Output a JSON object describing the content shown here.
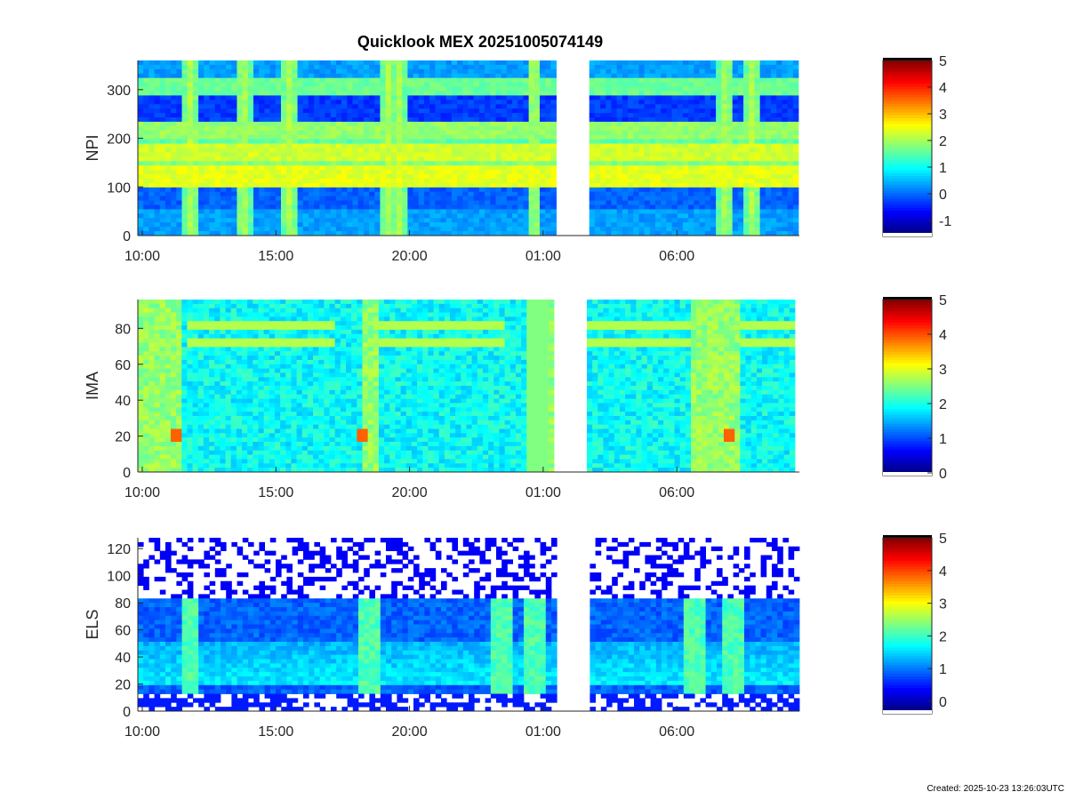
{
  "title": "Quicklook MEX 20251005074149",
  "footer": "Created: 2025-10-23 13:26:03UTC",
  "chart_data": [
    {
      "type": "heatmap",
      "ylabel": "NPI",
      "ylim": [
        0,
        360
      ],
      "yticks": [
        0,
        100,
        200,
        300
      ],
      "x_ticklabels": [
        "10:00",
        "15:00",
        "20:00",
        "01:00",
        "06:00"
      ],
      "colorbar": {
        "ticks": [
          -1,
          0,
          1,
          2,
          3,
          4,
          5
        ],
        "range": [
          -1.5,
          5
        ]
      },
      "data_gap": {
        "from": 0.63,
        "to": 0.68
      }
    },
    {
      "type": "heatmap",
      "ylabel": "IMA",
      "ylim": [
        0,
        96
      ],
      "yticks": [
        0,
        20,
        40,
        60,
        80
      ],
      "x_ticklabels": [
        "10:00",
        "15:00",
        "20:00",
        "01:00",
        "06:00"
      ],
      "colorbar": {
        "ticks": [
          0,
          1,
          2,
          3,
          4,
          5
        ],
        "range": [
          0,
          5
        ]
      },
      "data_gap": {
        "from": 0.635,
        "to": 0.68
      }
    },
    {
      "type": "heatmap",
      "ylabel": "ELS",
      "ylim": [
        0,
        128
      ],
      "yticks": [
        0,
        20,
        40,
        60,
        80,
        100,
        120
      ],
      "x_ticklabels": [
        "10:00",
        "15:00",
        "20:00",
        "01:00",
        "06:00"
      ],
      "colorbar": {
        "ticks": [
          0,
          1,
          2,
          3,
          4,
          5
        ],
        "range": [
          -0.3,
          5
        ]
      },
      "data_gap": {
        "from": 0.63,
        "to": 0.68
      }
    }
  ]
}
